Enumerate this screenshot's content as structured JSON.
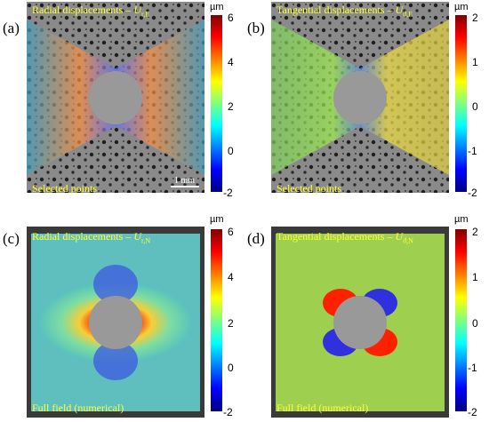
{
  "panels": [
    {
      "label": "(a)",
      "title_text": "Radial displacements – ",
      "title_sym": "U",
      "title_sub": "r,E",
      "footer": "Selected points",
      "scalebar": "1 mm",
      "colorbar": {
        "unit": "µm",
        "ticks": [
          "6",
          "4",
          "2",
          "0",
          "-2"
        ],
        "range": [
          -2,
          6
        ]
      }
    },
    {
      "label": "(b)",
      "title_text": "Tangential displacements – ",
      "title_sym": "U",
      "title_sub": "ϑ,E",
      "footer": "Selected points",
      "colorbar": {
        "unit": "µm",
        "ticks": [
          "2",
          "1",
          "0",
          "-1",
          "-2"
        ],
        "range": [
          -2,
          2
        ]
      }
    },
    {
      "label": "(c)",
      "title_text": "Radial displacements – ",
      "title_sym": "U",
      "title_sub": "r,N",
      "footer": "Full field (numerical)",
      "colorbar": {
        "unit": "µm",
        "ticks": [
          "6",
          "4",
          "2",
          "0",
          "-2"
        ],
        "range": [
          -2,
          6
        ]
      }
    },
    {
      "label": "(d)",
      "title_text": "Tangential displacements – ",
      "title_sym": "U",
      "title_sub": "ϑ,N",
      "footer": "Full field (numerical)",
      "colorbar": {
        "unit": "µm",
        "ticks": [
          "2",
          "1",
          "0",
          "-1",
          "-2"
        ],
        "range": [
          -2,
          2
        ]
      }
    }
  ],
  "colors": {
    "title_yellow": "#ffff33",
    "hole_gray": "#999999",
    "jet": [
      "#00007f",
      "#0000ff",
      "#007fff",
      "#00ffff",
      "#7fff7f",
      "#ffff00",
      "#ff7f00",
      "#ff0000",
      "#7f0000"
    ]
  }
}
